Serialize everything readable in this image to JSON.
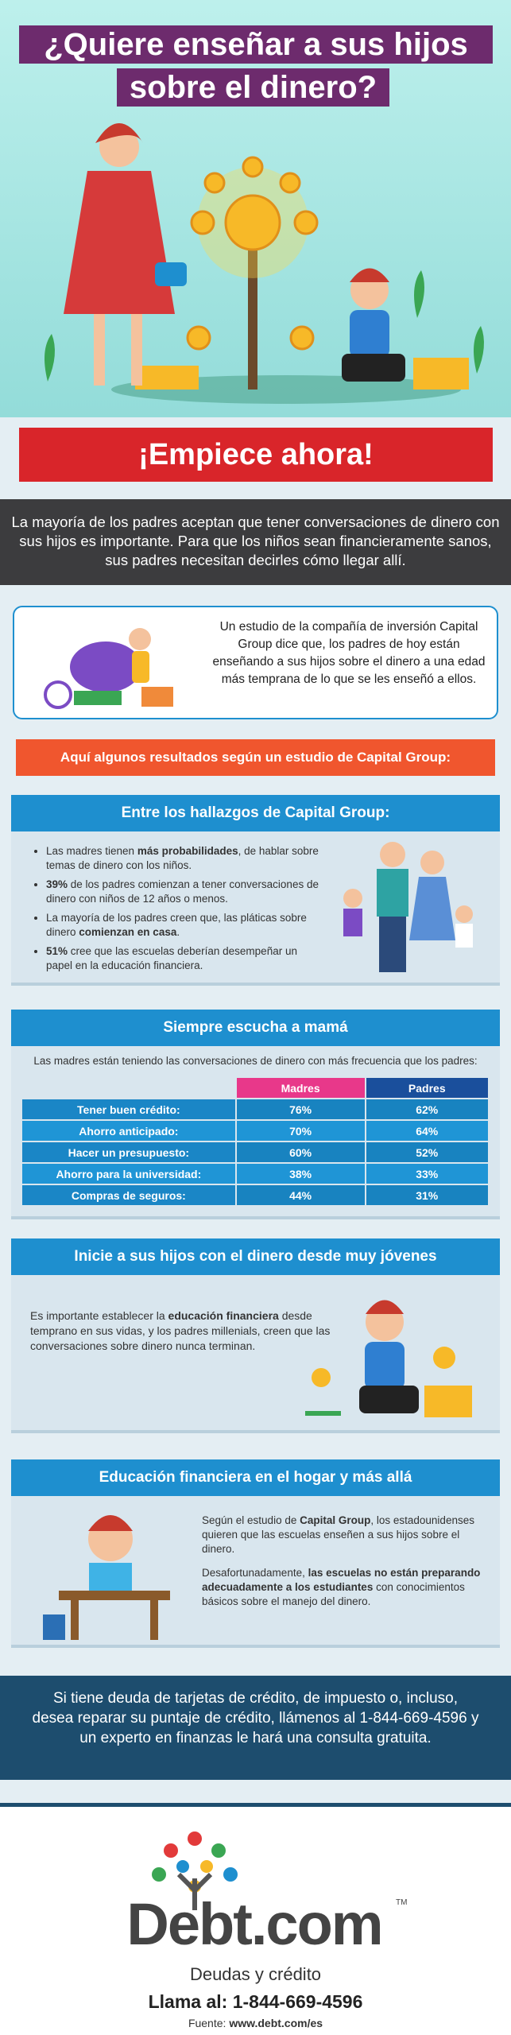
{
  "header": {
    "title_lines": [
      "¿Quiere enseñar a sus hijos",
      "sobre el dinero?"
    ]
  },
  "cta": "¡Empiece ahora!",
  "intro": "La mayoría de los padres aceptan que tener conversaciones de dinero con sus hijos es importante. Para que los niños sean financieramente sanos, sus padres necesitan decirles cómo llegar allí.",
  "study": "Un estudio de la compañía de inversión Capital Group dice que, los padres de hoy están enseñando a sus hijos sobre el dinero a una edad más temprana de lo que se les enseñó a ellos.",
  "results_banner": "Aquí algunos resultados  según un estudio de Capital Group:",
  "findings": {
    "title": "Entre los hallazgos de Capital Group:",
    "bullets": [
      [
        {
          "text": "Las madres tienen "
        },
        {
          "text": "más probabilidades",
          "bold": true
        },
        {
          "text": ", de hablar sobre temas de dinero con los niños."
        }
      ],
      [
        {
          "text": "39%",
          "bold": true
        },
        {
          "text": " de los padres comienzan a tener conversaciones de dinero con niños de 12 años o menos."
        }
      ],
      [
        {
          "text": "La mayoría de los padres creen que, las pláticas sobre dinero "
        },
        {
          "text": "comienzan en casa",
          "bold": true
        },
        {
          "text": "."
        }
      ],
      [
        {
          "text": "51%",
          "bold": true
        },
        {
          "text": " cree que las escuelas deberían desempeñar un papel en la educación financiera."
        }
      ]
    ]
  },
  "mom": {
    "title": "Siempre escucha a mamá",
    "subtitle": "Las madres están teniendo las conversaciones de dinero con más frecuencia que los padres:",
    "columns": [
      "Madres",
      "Padres"
    ],
    "rows": [
      [
        "Tener buen crédito:",
        "76%",
        "62%"
      ],
      [
        "Ahorro anticipado:",
        "70%",
        "64%"
      ],
      [
        "Hacer un presupuesto:",
        "60%",
        "52%"
      ],
      [
        "Ahorro para la universidad:",
        "38%",
        "33%"
      ],
      [
        "Compras de seguros:",
        "44%",
        "31%"
      ]
    ]
  },
  "early": {
    "title": "Inicie a sus hijos con el dinero desde muy jóvenes",
    "text": [
      {
        "text": "Es importante establecer la "
      },
      {
        "text": "educación financiera",
        "bold": true
      },
      {
        "text": " desde temprano en sus vidas, y los padres millenials, creen que las conversaciones sobre dinero nunca terminan."
      }
    ]
  },
  "school": {
    "title": "Educación financiera en el hogar y más allá",
    "paragraphs": [
      [
        {
          "text": "Según el estudio de "
        },
        {
          "text": "Capital Group",
          "bold": true
        },
        {
          "text": ", los estadounidenses quieren que las escuelas enseñen a sus hijos sobre el dinero."
        }
      ],
      [
        {
          "text": "Desafortunadamente, "
        },
        {
          "text": "las escuelas no están preparando adecuadamente a los estudiantes",
          "bold": true
        },
        {
          "text": " con conocimientos básicos sobre el manejo del dinero."
        }
      ]
    ]
  },
  "contact": "Si tiene deuda de tarjetas de crédito, de impuesto o, incluso, desea reparar su puntaje de crédito, llámenos al 1-844-669-4596 y un experto en finanzas le hará una consulta gratuita.",
  "footer": {
    "brand": "Debt.com",
    "tm": "TM",
    "tagline": "Deudas y crédito",
    "phone": "Llama al: 1-844-669-4596",
    "source_label": "Fuente:",
    "source_url": "www.debt.com/es"
  }
}
